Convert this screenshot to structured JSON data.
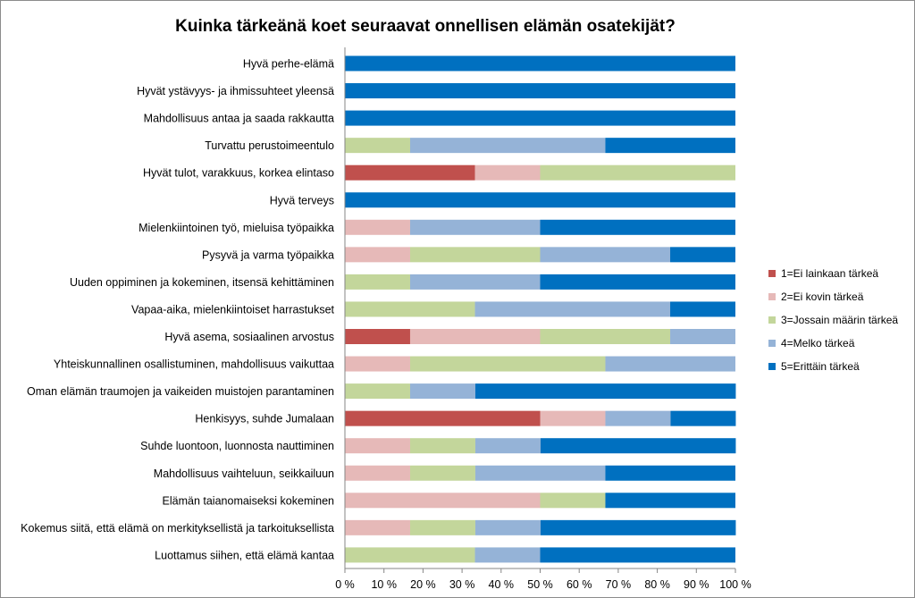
{
  "chart_data": {
    "type": "bar",
    "orientation": "horizontal",
    "stacked": "percent",
    "title": "Kuinka tärkeänä koet seuraavat onnellisen elämän osatekijät?",
    "categories": [
      "Hyvä perhe-elämä",
      "Hyvät ystävyys- ja ihmissuhteet yleensä",
      "Mahdollisuus antaa ja saada rakkautta",
      "Turvattu perustoimeentulo",
      "Hyvät tulot, varakkuus, korkea elintaso",
      "Hyvä terveys",
      "Mielenkiintoinen työ, mieluisa työpaikka",
      "Pysyvä ja varma työpaikka",
      "Uuden oppiminen ja kokeminen, itsensä kehittäminen",
      "Vapaa-aika, mielenkiintoiset harrastukset",
      "Hyvä asema, sosiaalinen arvostus",
      "Yhteiskunnallinen osallistuminen, mahdollisuus vaikuttaa",
      "Oman elämän traumojen ja vaikeiden muistojen parantaminen",
      "Henkisyys, suhde Jumalaan",
      "Suhde luontoon, luonnosta nauttiminen",
      "Mahdollisuus vaihteluun, seikkailuun",
      "Elämän taianomaiseksi kokeminen",
      "Kokemus siitä, että elämä on merkityksellistä ja tarkoituksellista",
      "Luottamus siihen, että elämä kantaa"
    ],
    "series": [
      {
        "name": "1=Ei lainkaan tärkeä",
        "color": "#c0504d",
        "values": [
          0,
          0,
          0,
          0,
          33.3,
          0,
          0,
          0,
          0,
          0,
          16.7,
          0,
          0,
          50,
          0,
          0,
          0,
          0,
          0
        ]
      },
      {
        "name": "2=Ei kovin tärkeä",
        "color": "#e6b9b8",
        "values": [
          0,
          0,
          0,
          0,
          16.7,
          0,
          16.7,
          16.7,
          0,
          0,
          33.3,
          16.7,
          0,
          16.7,
          16.7,
          16.7,
          50,
          16.7,
          0
        ]
      },
      {
        "name": "3=Jossain määrin tärkeä",
        "color": "#c3d69b",
        "values": [
          0,
          0,
          0,
          16.7,
          50,
          0,
          0,
          33.3,
          16.7,
          33.3,
          33.3,
          50,
          16.7,
          0,
          16.7,
          16.7,
          16.7,
          16.7,
          33.3
        ]
      },
      {
        "name": "4=Melko tärkeä",
        "color": "#95b3d7",
        "values": [
          0,
          0,
          0,
          50,
          0,
          0,
          33.3,
          33.3,
          33.3,
          50,
          16.7,
          33.3,
          16.7,
          16.7,
          16.7,
          33.3,
          0,
          16.7,
          16.7
        ]
      },
      {
        "name": "5=Erittäin tärkeä",
        "color": "#0070c0",
        "values": [
          100,
          100,
          100,
          33.3,
          0,
          100,
          50,
          16.7,
          50,
          16.7,
          0,
          0,
          66.7,
          16.7,
          50,
          33.3,
          33.3,
          50,
          50
        ]
      }
    ],
    "xlim": [
      0,
      100
    ],
    "xticks": [
      "0 %",
      "10 %",
      "20 %",
      "30 %",
      "40 %",
      "50 %",
      "60 %",
      "70 %",
      "80 %",
      "90 %",
      "100 %"
    ],
    "grid": false,
    "legend_position": "right"
  }
}
